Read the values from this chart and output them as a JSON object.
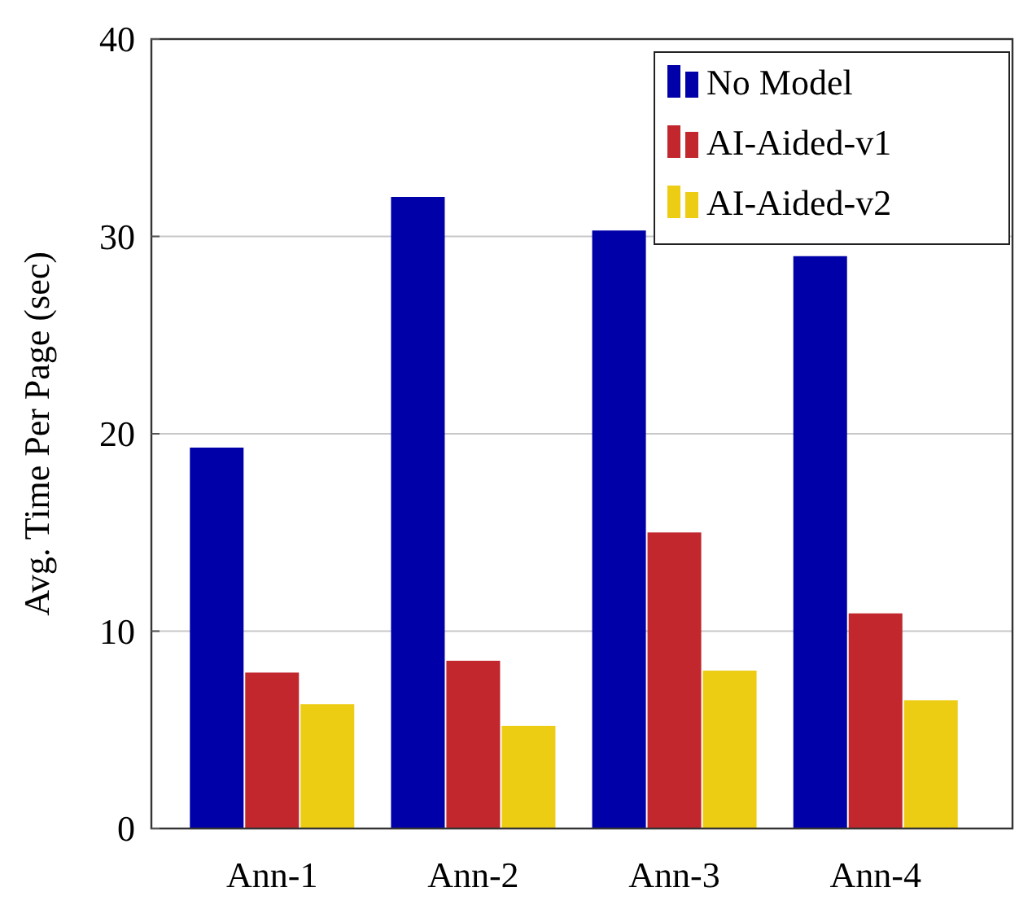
{
  "chart_data": {
    "type": "bar",
    "ylabel": "Avg. Time Per Page (sec)",
    "categories": [
      "Ann-1",
      "Ann-2",
      "Ann-3",
      "Ann-4"
    ],
    "series": [
      {
        "name": "No Model",
        "color": "#0000a8",
        "values": [
          19.3,
          32.0,
          30.3,
          29
        ]
      },
      {
        "name": "AI-Aided-v1",
        "color": "#c1272d",
        "values": [
          7.9,
          8.5,
          15.0,
          10.9
        ]
      },
      {
        "name": "AI-Aided-v2",
        "color": "#edcc14",
        "values": [
          6.3,
          5.2,
          8.0,
          6.5
        ]
      }
    ],
    "ylim": [
      0,
      40
    ],
    "yticks": [
      0,
      10,
      20,
      30,
      40
    ],
    "grid": "y",
    "legend": "top right"
  }
}
